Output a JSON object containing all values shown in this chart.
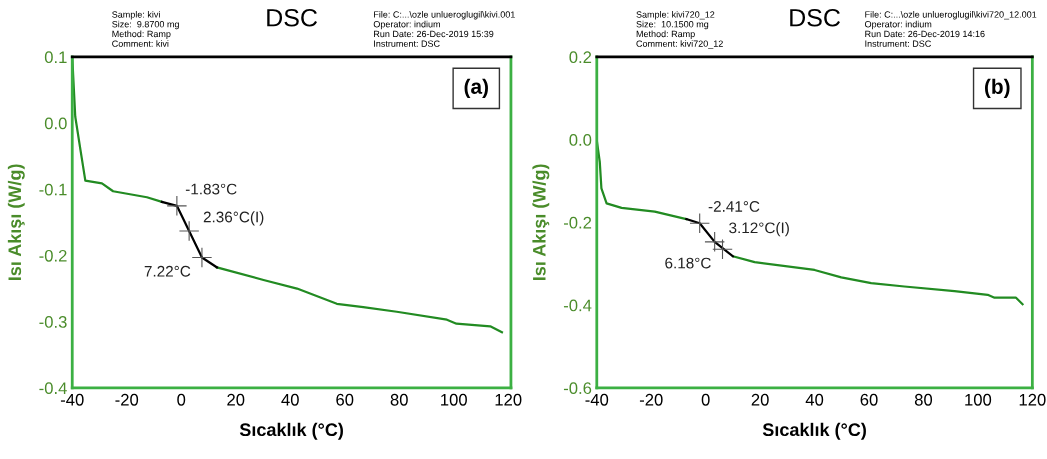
{
  "chart_data": [
    {
      "type": "line",
      "title": "DSC",
      "xlabel": "Sıcaklık (°C)",
      "ylabel": "Isı Akışı (W/g)",
      "xlim": [
        -40,
        121
      ],
      "xticks": [
        -40,
        -20,
        0,
        20,
        40,
        60,
        80,
        100,
        120
      ],
      "ylim": [
        -0.4,
        0.1
      ],
      "yticks": [
        {
          "value": 0.1,
          "label": "0.1"
        },
        {
          "value": 0.0,
          "label": "0.0"
        },
        {
          "value": -0.1,
          "label": "-0.1"
        },
        {
          "value": -0.2,
          "label": "-0.2"
        },
        {
          "value": -0.3,
          "label": "-0.3"
        },
        {
          "value": -0.4,
          "label": "-0.4"
        }
      ],
      "grid": false,
      "legend": false,
      "series": [
        {
          "color": "#228b22",
          "x": [
            -40,
            -38.9,
            -37,
            -35.2,
            -29.1,
            -25,
            -12.6,
            -7.1,
            null,
            13.1,
            30.2,
            42.5,
            57.1,
            66.8,
            79.1,
            97.5,
            101,
            113.4,
            117.7
          ],
          "values": [
            0.1,
            0.01,
            -0.04,
            -0.087,
            -0.091,
            -0.103,
            -0.112,
            -0.119,
            null,
            -0.218,
            -0.237,
            -0.25,
            -0.273,
            -0.278,
            -0.285,
            -0.297,
            -0.303,
            -0.307,
            -0.316
          ]
        },
        {
          "color": "#000000",
          "x": [
            -7.1,
            -1.6,
            2.9,
            7.6,
            13.1
          ],
          "values": [
            -0.119,
            -0.125,
            -0.163,
            -0.203,
            -0.218
          ]
        }
      ],
      "annotations": [
        "Sample: kivi\nSize:  9.8700 mg\nMethod: Ramp\nComment: kivi",
        "File: C:...\\ozle unlueroglugil\\kivi.001\nOperator: indium\nRun Date: 26-Dec-2019 15:39\nInstrument: DSC",
        "(a)",
        {
          "text": "-1.83°C",
          "x": -1.6,
          "y": -0.125
        },
        {
          "text": "2.36°C(I)",
          "x": 2.9,
          "y": -0.163
        },
        {
          "text": "7.22°C",
          "x": 7.6,
          "y": -0.203
        }
      ]
    },
    {
      "type": "line",
      "title": "DSC",
      "xlabel": "Sıcaklık (°C)",
      "ylabel": "Isı Akışı (W/g)",
      "xlim": [
        -40,
        120
      ],
      "xticks": [
        -40,
        -20,
        0,
        20,
        40,
        60,
        80,
        100,
        120
      ],
      "ylim": [
        -0.6,
        0.2
      ],
      "yticks": [
        {
          "value": 0.2,
          "label": "0.2"
        },
        {
          "value": 0.0,
          "label": "0.0"
        },
        {
          "value": -0.2,
          "label": "-0.2"
        },
        {
          "value": -0.4,
          "label": "-0.4"
        },
        {
          "value": -0.6,
          "label": "-0.6"
        }
      ],
      "grid": false,
      "legend": false,
      "series": [
        {
          "color": "#228b22",
          "x": [
            -40,
            -38.9,
            -38.3,
            -36.4,
            -30.9,
            -18.7,
            -7.1,
            null,
            10,
            18,
            40,
            49.8,
            60.8,
            73,
            91.4,
            103.6,
            106.1,
            114,
            116.4
          ],
          "values": [
            -0.002,
            -0.054,
            -0.118,
            -0.154,
            -0.165,
            -0.174,
            -0.192,
            null,
            -0.282,
            -0.296,
            -0.315,
            -0.333,
            -0.347,
            -0.355,
            -0.366,
            -0.375,
            -0.382,
            -0.382,
            -0.398
          ]
        },
        {
          "color": "#000000",
          "x": [
            -7.1,
            -2.2,
            3.3,
            10
          ],
          "values": [
            -0.192,
            -0.202,
            -0.247,
            -0.282
          ]
        }
      ],
      "annotations": [
        "Sample: kivi720_12\nSize:  10.1500 mg\nMethod: Ramp\nComment: kivi720_12",
        "File: C:...\\ozle unlueroglugil\\kivi720_12.001\nOperator: indium\nRun Date: 26-Dec-2019 14:16\nInstrument: DSC",
        "(b)",
        {
          "text": "-2.41°C",
          "x": -2.2,
          "y": -0.202
        },
        {
          "text": "3.12°C(I)",
          "x": 3.3,
          "y": -0.247
        },
        {
          "text": "6.18°C",
          "x": 6.18,
          "y": -0.265
        }
      ]
    }
  ]
}
